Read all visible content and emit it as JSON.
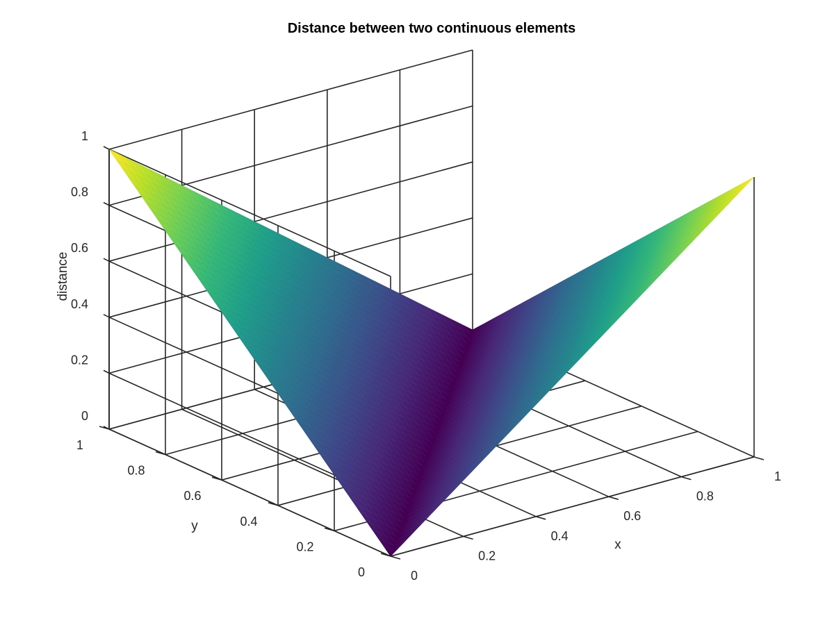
{
  "chart_data": {
    "type": "surface",
    "title": "Distance between two continuous elements",
    "xlabel": "x",
    "ylabel": "y",
    "zlabel": "distance",
    "xlim": [
      0,
      1
    ],
    "ylim": [
      0,
      1
    ],
    "zlim": [
      0,
      1
    ],
    "x_ticks": [
      "0",
      "0.2",
      "0.4",
      "0.6",
      "0.8",
      "1"
    ],
    "y_ticks": [
      "0",
      "0.2",
      "0.4",
      "0.6",
      "0.8",
      "1"
    ],
    "z_ticks": [
      "0",
      "0.2",
      "0.4",
      "0.6",
      "0.8",
      "1"
    ],
    "x_tick_values": [
      0,
      0.2,
      0.4,
      0.6,
      0.8,
      1
    ],
    "y_tick_values": [
      0,
      0.2,
      0.4,
      0.6,
      0.8,
      1
    ],
    "z_tick_values": [
      0,
      0.2,
      0.4,
      0.6,
      0.8,
      1
    ],
    "function": "distance = |x - y|",
    "corner_values": [
      {
        "x": 0,
        "y": 0,
        "z": 0
      },
      {
        "x": 1,
        "y": 0,
        "z": 1
      },
      {
        "x": 0,
        "y": 1,
        "z": 1
      },
      {
        "x": 1,
        "y": 1,
        "z": 0
      }
    ],
    "colormap": "viridis",
    "colormap_stops": [
      "#440154",
      "#482878",
      "#3e4989",
      "#31688e",
      "#26828e",
      "#1f9e89",
      "#35b779",
      "#6ece58",
      "#b5de2b",
      "#fde725"
    ],
    "grid": true,
    "colorbar": false
  }
}
